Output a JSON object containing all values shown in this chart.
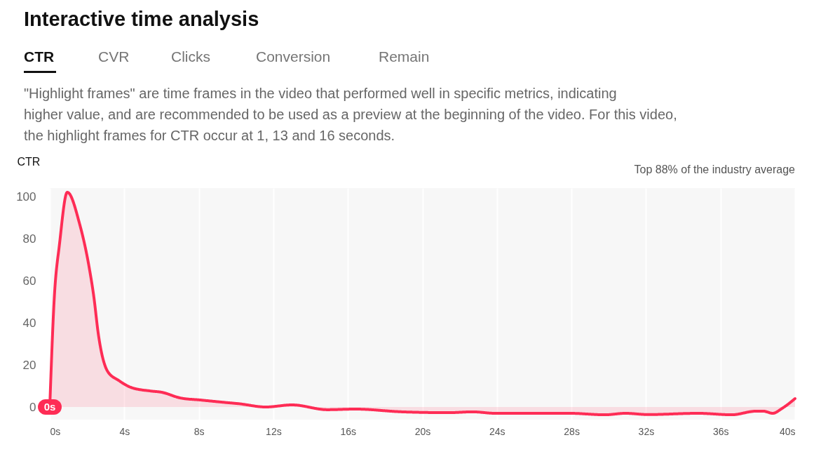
{
  "chart_data": {
    "type": "area",
    "title": "Interactive time analysis",
    "subtitle": "\"Highlight frames\" are time frames in the video that performed well in specific metrics, indicating higher value, and are recommended to be used as a preview at the beginning of the video. For this video, the highlight frames for CTR occur at 1, 13 and 16 seconds.",
    "ylabel": "CTR",
    "annotations": [
      "CTR",
      "CVR",
      "Clicks",
      "Conversion",
      "Remain",
      "Top 88% of the industry average",
      {
        "text": "0s",
        "x": 0,
        "y": 0
      }
    ],
    "x": [
      0,
      0.23,
      0.53,
      0.94,
      1.6,
      2.1,
      2.37,
      2.6,
      3.1,
      3.7,
      4.36,
      5.4,
      6.0,
      7.0,
      8.1,
      9.6,
      10.1,
      11.6,
      13.0,
      14.9,
      16.4,
      18.9,
      21.4,
      22.7,
      23.9,
      25.8,
      27.9,
      29.8,
      30.9,
      32.1,
      34.8,
      36.6,
      37.9,
      38.3,
      38.8,
      39.3,
      40
    ],
    "series": [
      {
        "color": "#fe2c55",
        "values": [
          0,
          50,
          78,
          102,
          87,
          67,
          52,
          35,
          17,
          12.6,
          9.3,
          7.6,
          7,
          4.3,
          3.3,
          2,
          1.6,
          0,
          1,
          -1.3,
          -1,
          -2.3,
          -2.7,
          -2.3,
          -3,
          -3,
          -3,
          -3.7,
          -3,
          -3.6,
          -3,
          -3.7,
          -2,
          -2,
          -3,
          -0.7,
          4
        ]
      }
    ],
    "xlim": [
      0,
      40
    ],
    "xticks": [
      {
        "value": 0,
        "label": "0s"
      },
      {
        "value": 4,
        "label": "4s"
      },
      {
        "value": 8,
        "label": "8s"
      },
      {
        "value": 12,
        "label": "12s"
      },
      {
        "value": 16,
        "label": "16s"
      },
      {
        "value": 20,
        "label": "20s"
      },
      {
        "value": 24,
        "label": "24s"
      },
      {
        "value": 28,
        "label": "28s"
      },
      {
        "value": 32,
        "label": "32s"
      },
      {
        "value": 36,
        "label": "36s"
      },
      {
        "value": 40,
        "label": "40s"
      }
    ],
    "ylim": [
      -6,
      104
    ],
    "yticks": [
      0,
      20,
      40,
      60,
      80,
      100
    ],
    "grid": "x",
    "marker": "none",
    "line_style": "solid"
  }
}
